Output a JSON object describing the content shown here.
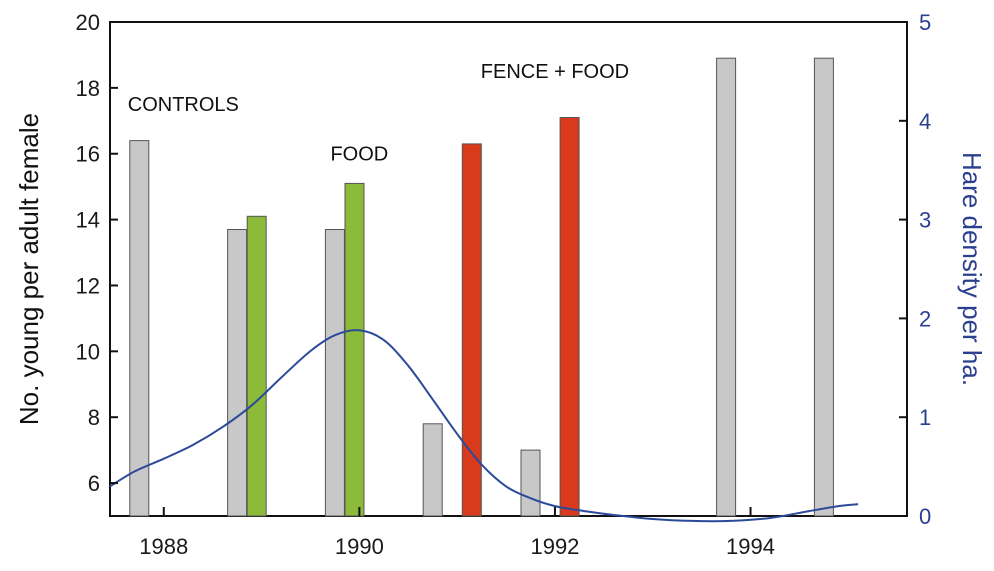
{
  "chart_data": {
    "type": "bar",
    "ylabel": "No. young per adult female",
    "y2label": "Hare density per ha.",
    "ylim": [
      5,
      20
    ],
    "y2lim": [
      0,
      5
    ],
    "xlim": [
      1987.45,
      1995.6
    ],
    "yticks": [
      6,
      8,
      10,
      12,
      14,
      16,
      18,
      20
    ],
    "y2ticks": [
      0,
      1,
      2,
      3,
      4,
      5
    ],
    "xticks": [
      1988,
      1990,
      1992,
      1994
    ],
    "colors": {
      "CONTROLS": "#c8c8c8",
      "FOOD": "#8cbb3a",
      "FENCE + FOOD": "#d93a1c",
      "density": "#2b4a9a"
    },
    "annotations": [
      {
        "text": "CONTROLS",
        "x": 1988.2,
        "y": 17.3
      },
      {
        "text": "FOOD",
        "x": 1990.0,
        "y": 15.8
      },
      {
        "text": "FENCE + FOOD",
        "x": 1992.0,
        "y": 18.3
      }
    ],
    "bars": [
      {
        "x": 1987.75,
        "value": 16.4,
        "group": "CONTROLS"
      },
      {
        "x": 1988.75,
        "value": 13.7,
        "group": "CONTROLS"
      },
      {
        "x": 1988.95,
        "value": 14.1,
        "group": "FOOD"
      },
      {
        "x": 1989.75,
        "value": 13.7,
        "group": "CONTROLS"
      },
      {
        "x": 1989.95,
        "value": 15.1,
        "group": "FOOD"
      },
      {
        "x": 1990.75,
        "value": 7.8,
        "group": "CONTROLS"
      },
      {
        "x": 1991.15,
        "value": 16.3,
        "group": "FENCE + FOOD"
      },
      {
        "x": 1991.75,
        "value": 7.0,
        "group": "CONTROLS"
      },
      {
        "x": 1992.15,
        "value": 17.1,
        "group": "FENCE + FOOD"
      },
      {
        "x": 1993.75,
        "value": 18.9,
        "group": "CONTROLS"
      },
      {
        "x": 1994.75,
        "value": 18.9,
        "group": "CONTROLS"
      }
    ],
    "density_series": {
      "axis": "right",
      "points": [
        [
          1987.45,
          0.3
        ],
        [
          1987.7,
          0.45
        ],
        [
          1988.0,
          0.58
        ],
        [
          1988.3,
          0.72
        ],
        [
          1988.6,
          0.9
        ],
        [
          1988.9,
          1.12
        ],
        [
          1989.2,
          1.4
        ],
        [
          1989.5,
          1.67
        ],
        [
          1989.75,
          1.83
        ],
        [
          1990.0,
          1.88
        ],
        [
          1990.25,
          1.78
        ],
        [
          1990.5,
          1.52
        ],
        [
          1990.75,
          1.18
        ],
        [
          1991.0,
          0.83
        ],
        [
          1991.25,
          0.52
        ],
        [
          1991.5,
          0.3
        ],
        [
          1991.75,
          0.18
        ],
        [
          1992.0,
          0.1
        ],
        [
          1992.3,
          0.05
        ],
        [
          1992.6,
          0.01
        ],
        [
          1993.0,
          -0.03
        ],
        [
          1993.4,
          -0.05
        ],
        [
          1993.8,
          -0.05
        ],
        [
          1994.2,
          -0.02
        ],
        [
          1994.6,
          0.05
        ],
        [
          1994.9,
          0.1
        ],
        [
          1995.1,
          0.12
        ]
      ]
    }
  }
}
